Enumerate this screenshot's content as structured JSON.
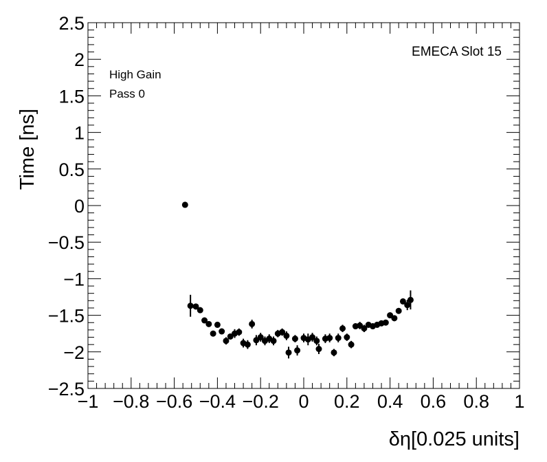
{
  "chart_data": {
    "type": "scatter",
    "title": "",
    "xlabel": "δη[0.025 units]",
    "ylabel": "Time [ns]",
    "xlim": [
      -1,
      1
    ],
    "ylim": [
      -2.5,
      2.5
    ],
    "x_ticks": [
      "−1",
      "−0.8",
      "−0.6",
      "−0.4",
      "−0.2",
      "0",
      "0.2",
      "0.4",
      "0.6",
      "0.8",
      "1"
    ],
    "y_ticks": [
      "−2.5",
      "−2",
      "−1.5",
      "−1",
      "−0.5",
      "0",
      "0.5",
      "1",
      "1.5",
      "2",
      "2.5"
    ],
    "grid": false,
    "legend": "none",
    "marker_color": "#000000",
    "annotations": {
      "top_right": "EMECA Slot 15",
      "line1": "High Gain",
      "line2": "Pass 0"
    },
    "series": [
      {
        "points": [
          {
            "x": -0.55,
            "y": 0.01,
            "err": 0.02
          },
          {
            "x": -0.525,
            "y": -1.37,
            "err": 0.15
          },
          {
            "x": -0.5,
            "y": -1.38,
            "err": 0.04
          },
          {
            "x": -0.48,
            "y": -1.43,
            "err": 0.04
          },
          {
            "x": -0.46,
            "y": -1.57,
            "err": 0.03
          },
          {
            "x": -0.44,
            "y": -1.62,
            "err": 0.03
          },
          {
            "x": -0.42,
            "y": -1.75,
            "err": 0.04
          },
          {
            "x": -0.4,
            "y": -1.63,
            "err": 0.04
          },
          {
            "x": -0.38,
            "y": -1.72,
            "err": 0.04
          },
          {
            "x": -0.36,
            "y": -1.85,
            "err": 0.05
          },
          {
            "x": -0.34,
            "y": -1.79,
            "err": 0.04
          },
          {
            "x": -0.32,
            "y": -1.75,
            "err": 0.06
          },
          {
            "x": -0.3,
            "y": -1.73,
            "err": 0.05
          },
          {
            "x": -0.28,
            "y": -1.88,
            "err": 0.06
          },
          {
            "x": -0.26,
            "y": -1.9,
            "err": 0.06
          },
          {
            "x": -0.24,
            "y": -1.62,
            "err": 0.06
          },
          {
            "x": -0.22,
            "y": -1.84,
            "err": 0.07
          },
          {
            "x": -0.2,
            "y": -1.8,
            "err": 0.06
          },
          {
            "x": -0.18,
            "y": -1.85,
            "err": 0.06
          },
          {
            "x": -0.16,
            "y": -1.82,
            "err": 0.06
          },
          {
            "x": -0.14,
            "y": -1.85,
            "err": 0.06
          },
          {
            "x": -0.12,
            "y": -1.75,
            "err": 0.05
          },
          {
            "x": -0.1,
            "y": -1.73,
            "err": 0.05
          },
          {
            "x": -0.08,
            "y": -1.78,
            "err": 0.06
          },
          {
            "x": -0.07,
            "y": -2.01,
            "err": 0.08
          },
          {
            "x": -0.04,
            "y": -1.82,
            "err": 0.05
          },
          {
            "x": -0.03,
            "y": -1.98,
            "err": 0.07
          },
          {
            "x": 0.0,
            "y": -1.81,
            "err": 0.06
          },
          {
            "x": 0.02,
            "y": -1.83,
            "err": 0.08
          },
          {
            "x": 0.04,
            "y": -1.8,
            "err": 0.06
          },
          {
            "x": 0.06,
            "y": -1.85,
            "err": 0.06
          },
          {
            "x": 0.07,
            "y": -1.96,
            "err": 0.07
          },
          {
            "x": 0.1,
            "y": -1.82,
            "err": 0.06
          },
          {
            "x": 0.12,
            "y": -1.81,
            "err": 0.06
          },
          {
            "x": 0.14,
            "y": -2.01,
            "err": 0.05
          },
          {
            "x": 0.16,
            "y": -1.81,
            "err": 0.06
          },
          {
            "x": 0.18,
            "y": -1.68,
            "err": 0.05
          },
          {
            "x": 0.2,
            "y": -1.8,
            "err": 0.05
          },
          {
            "x": 0.22,
            "y": -1.9,
            "err": 0.05
          },
          {
            "x": 0.24,
            "y": -1.65,
            "err": 0.04
          },
          {
            "x": 0.26,
            "y": -1.64,
            "err": 0.05
          },
          {
            "x": 0.28,
            "y": -1.68,
            "err": 0.05
          },
          {
            "x": 0.3,
            "y": -1.63,
            "err": 0.04
          },
          {
            "x": 0.32,
            "y": -1.65,
            "err": 0.04
          },
          {
            "x": 0.34,
            "y": -1.63,
            "err": 0.04
          },
          {
            "x": 0.36,
            "y": -1.61,
            "err": 0.04
          },
          {
            "x": 0.38,
            "y": -1.6,
            "err": 0.04
          },
          {
            "x": 0.4,
            "y": -1.5,
            "err": 0.04
          },
          {
            "x": 0.42,
            "y": -1.54,
            "err": 0.04
          },
          {
            "x": 0.44,
            "y": -1.44,
            "err": 0.04
          },
          {
            "x": 0.46,
            "y": -1.31,
            "err": 0.04
          },
          {
            "x": 0.48,
            "y": -1.36,
            "err": 0.07
          },
          {
            "x": 0.495,
            "y": -1.29,
            "err": 0.13
          }
        ]
      }
    ]
  }
}
